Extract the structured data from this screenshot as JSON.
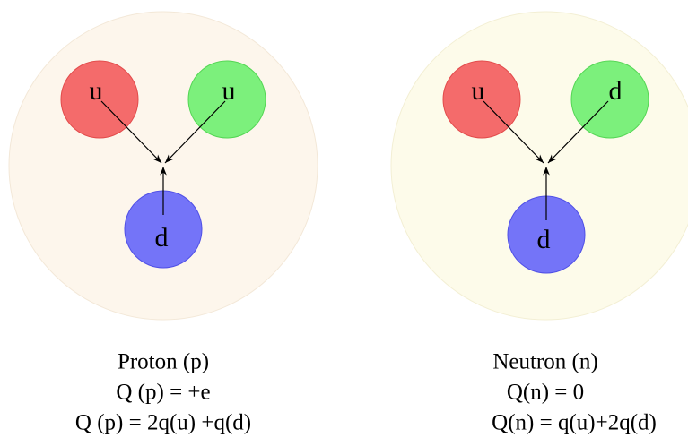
{
  "hadrons": [
    {
      "name": "Proton (p)",
      "charge": "Q (p) = +e",
      "formula": "Q (p) = 2q(u) +q(d)",
      "quarks": [
        "u",
        "u",
        "d"
      ]
    },
    {
      "name": "Neutron (n)",
      "charge": "Q(n) = 0",
      "formula": "Q(n) = q(u)+2q(d)",
      "quarks": [
        "u",
        "d",
        "d"
      ]
    }
  ]
}
